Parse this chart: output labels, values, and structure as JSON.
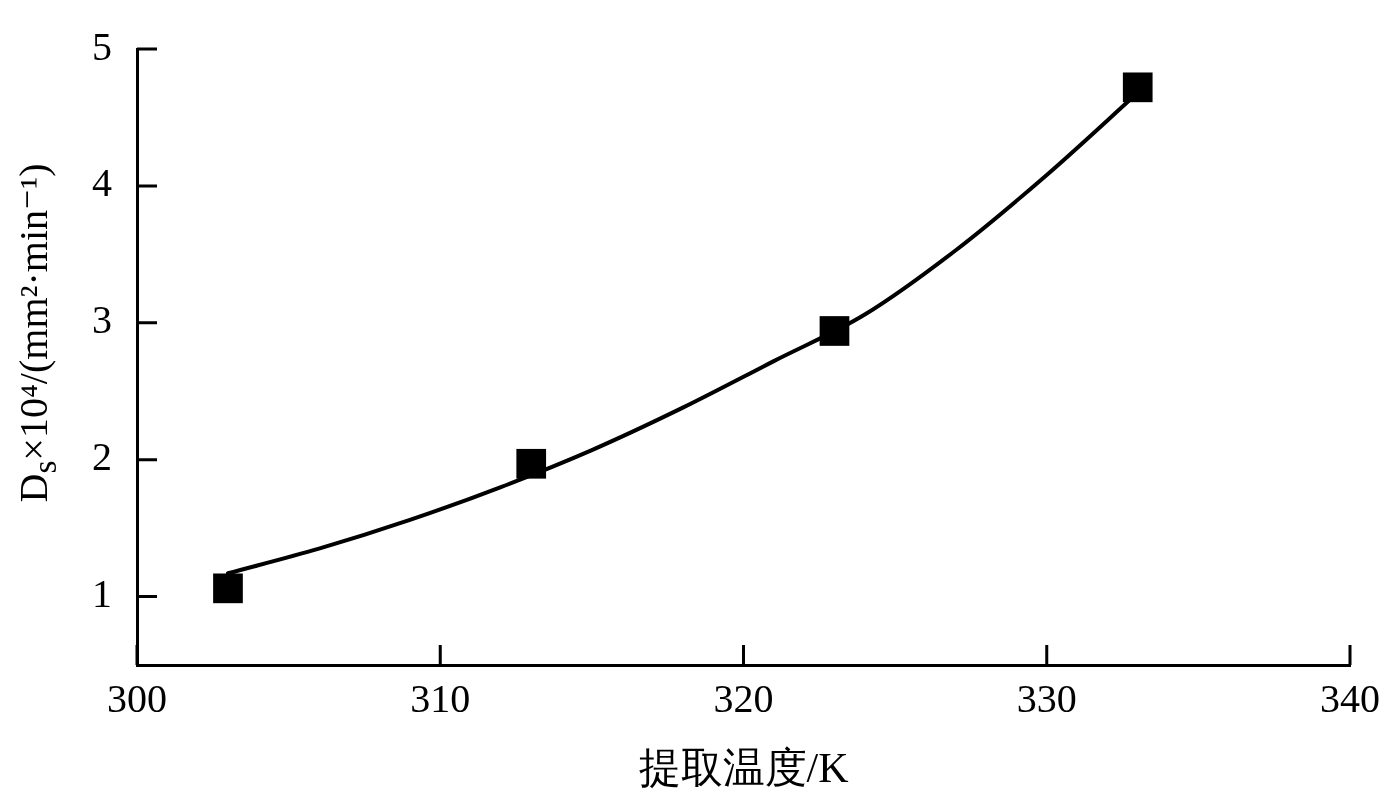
{
  "chart_data": {
    "type": "scatter",
    "xlabel": "提取温度/K",
    "ylabel": "D$_{s}$×10⁴/(mm²·min⁻¹)",
    "xlim": [
      300,
      340
    ],
    "xticks": [
      300,
      310,
      320,
      330,
      340
    ],
    "ylim": [
      0.5,
      5
    ],
    "yticks": [
      1,
      2,
      3,
      4,
      5
    ],
    "marker": "square",
    "series": [
      {
        "x": [
          303,
          313,
          323,
          333
        ],
        "values": [
          1.06,
          1.97,
          2.94,
          4.72
        ],
        "color": "#000000"
      },
      {
        "type": "line",
        "marker": "none",
        "line_style": "solid",
        "x": [
          303,
          306,
          309,
          312,
          315,
          318,
          321,
          324,
          327,
          330,
          333
        ],
        "values": [
          1.17,
          1.35,
          1.56,
          1.8,
          2.07,
          2.38,
          2.72,
          3.06,
          3.53,
          4.08,
          4.68
        ],
        "color": "#000000"
      }
    ]
  }
}
